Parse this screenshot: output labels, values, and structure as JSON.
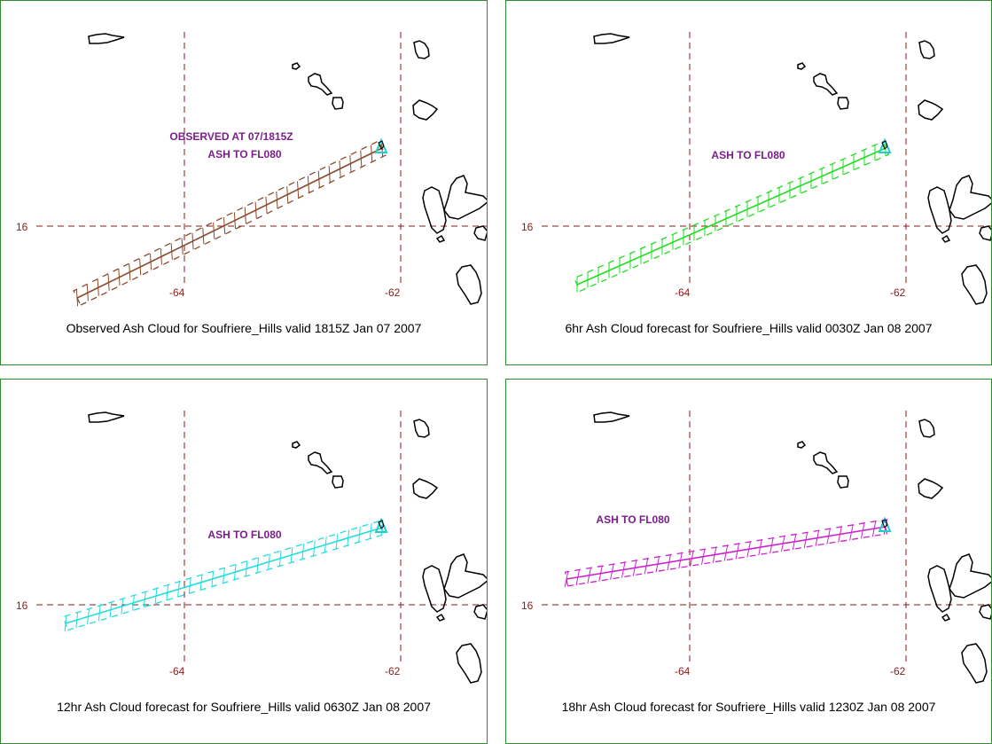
{
  "colors": {
    "grid": "#8b1a1a",
    "annotation": "#7a1f8a",
    "land": "#000000",
    "border": "#2e8b2e",
    "volcano": "#22cccc"
  },
  "panels": [
    {
      "id": "observed",
      "color": "#8b4a2b",
      "annotation": [
        "OBSERVED AT 07/1815Z",
        "ASH TO FL080"
      ],
      "caption": "Observed Ash Cloud for Soufriere_Hills valid 1815Z Jan 07 2007",
      "labels": {
        "lat16": "16",
        "lon64": "-64",
        "lon62": "-62"
      }
    },
    {
      "id": "fc06",
      "color": "#22dd22",
      "annotation": [
        "ASH TO FL080"
      ],
      "caption": "6hr Ash Cloud forecast for Soufriere_Hills valid 0030Z Jan 08 2007",
      "labels": {
        "lat16": "16",
        "lon64": "-64",
        "lon62": "-62"
      }
    },
    {
      "id": "fc12",
      "color": "#22dddd",
      "annotation": [
        "ASH TO FL080"
      ],
      "caption": "12hr Ash Cloud forecast for Soufriere_Hills valid 0630Z Jan 08 2007",
      "labels": {
        "lat16": "16",
        "lon64": "-64",
        "lon62": "-62"
      }
    },
    {
      "id": "fc18",
      "color": "#cc22cc",
      "annotation": [
        "ASH TO FL080"
      ],
      "caption": "18hr Ash Cloud forecast for Soufriere_Hills valid 1230Z Jan 08 2007",
      "labels": {
        "lat16": "16",
        "lon64": "-64",
        "lon62": "-62"
      }
    }
  ]
}
